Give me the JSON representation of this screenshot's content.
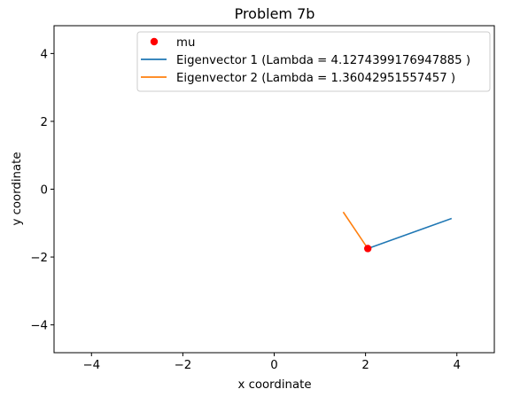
{
  "chart_data": {
    "type": "scatter",
    "title": "Problem 7b",
    "xlabel": "x coordinate",
    "ylabel": "y coordinate",
    "xlim": [
      -4.82,
      4.82
    ],
    "ylim": [
      -4.82,
      4.82
    ],
    "xticks": [
      -4,
      -2,
      0,
      2,
      4
    ],
    "yticks": [
      4,
      2,
      0,
      -2,
      -4
    ],
    "tick_labels": {
      "x": [
        "−4",
        "−2",
        "0",
        "2",
        "4"
      ],
      "y": [
        "4",
        "2",
        "0",
        "−2",
        "−4"
      ]
    },
    "grid": false,
    "legend_position": "upper-center",
    "series": [
      {
        "name": "mu",
        "kind": "point",
        "color": "#ff0000",
        "x": [
          2.05
        ],
        "y": [
          -1.75
        ]
      },
      {
        "name": "Eigenvector 1 (Lambda = 4.1274399176947885 )",
        "kind": "line",
        "color": "#1f77b4",
        "x": [
          2.05,
          3.87
        ],
        "y": [
          -1.75,
          -0.87
        ]
      },
      {
        "name": "Eigenvector 2 (Lambda = 1.36042951557457 )",
        "kind": "line",
        "color": "#ff7f0e",
        "x": [
          2.05,
          1.52
        ],
        "y": [
          -1.75,
          -0.69
        ]
      }
    ]
  }
}
